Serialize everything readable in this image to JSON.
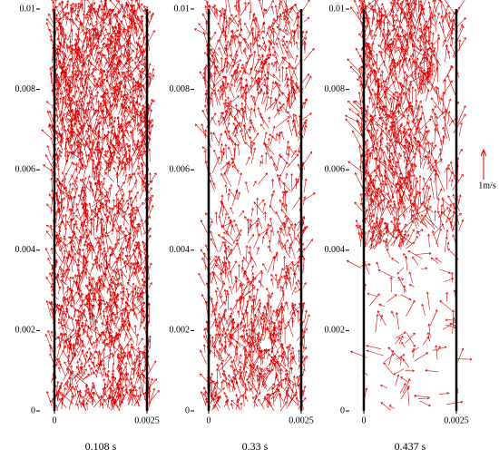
{
  "chart_data": [
    {
      "type": "quiver",
      "xlim": [
        0,
        0.0025
      ],
      "ylim": [
        0,
        0.01
      ],
      "xticks": [
        0,
        0.0025
      ],
      "yticks": [
        0,
        0.002,
        0.004,
        0.006,
        0.008,
        0.01
      ],
      "caption": "0.108 s",
      "color": "#dd0000"
    },
    {
      "type": "quiver",
      "xlim": [
        0,
        0.0025
      ],
      "ylim": [
        0,
        0.01
      ],
      "xticks": [
        0,
        0.0025
      ],
      "yticks": [
        0,
        0.002,
        0.004,
        0.006,
        0.008,
        0.01
      ],
      "caption": "0.33 s",
      "color": "#dd0000"
    },
    {
      "type": "quiver",
      "xlim": [
        0,
        0.0025
      ],
      "ylim": [
        0,
        0.01
      ],
      "xticks": [
        0,
        0.0025
      ],
      "yticks": [
        0,
        0.002,
        0.004,
        0.006,
        0.008,
        0.01
      ],
      "caption": "0.437 s",
      "color": "#dd0000",
      "scale_label": "1m/s"
    }
  ]
}
